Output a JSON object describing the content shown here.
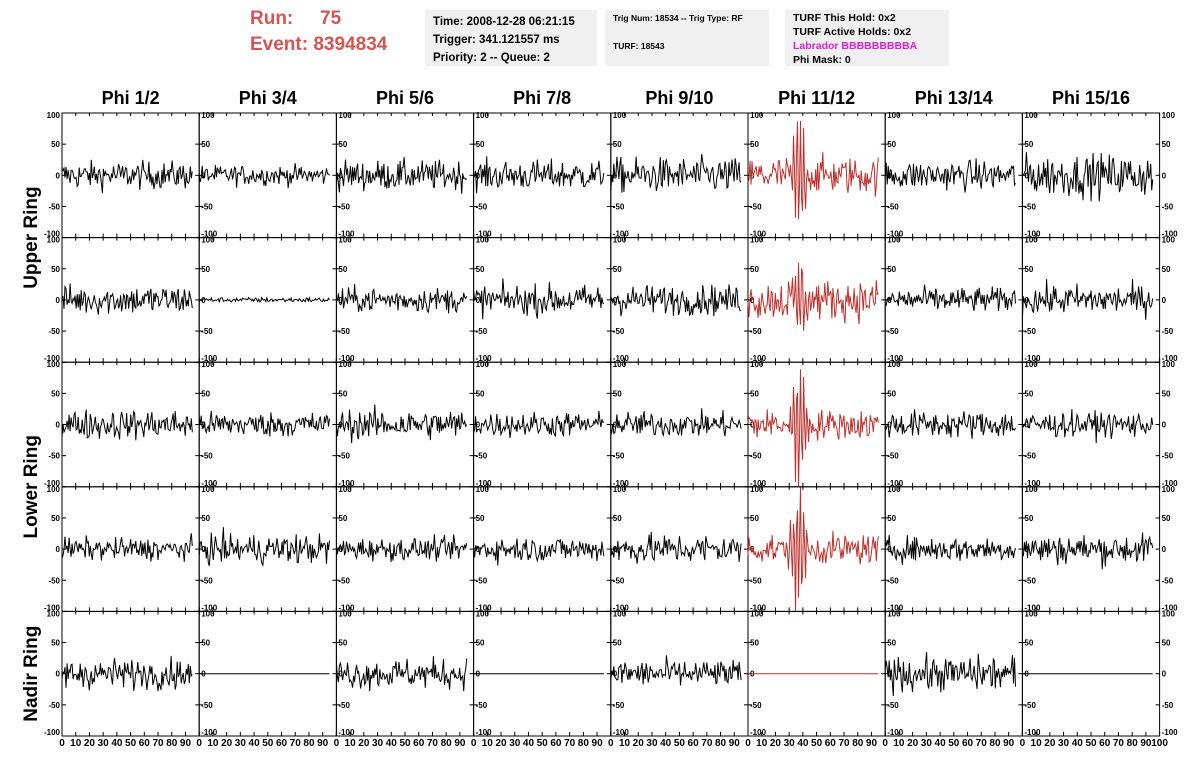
{
  "header": {
    "run_label": "Run:",
    "run_value": "75",
    "event_label": "Event:",
    "event_value": "8394834",
    "time": "Time: 2008-12-28 06:21:15",
    "trigger": "Trigger: 341.121557 ms",
    "priority": "Priority: 2 -- Queue: 2",
    "trig_num": "Trig Num: 18534 -- Trig Type: RF",
    "turf": "TURF: 18543",
    "turf_this_hold": "TURF This Hold: 0x2",
    "turf_active_holds": "TURF Active Holds: 0x2",
    "labrador": "Labrador BBBBBBBBBA",
    "phi_mask": "Phi Mask: 0"
  },
  "colors": {
    "normal": "#000000",
    "highlight": "#c0302c",
    "run": "#d9534f",
    "labrador": "#e020e0"
  },
  "chart_data": {
    "type": "line",
    "columns": [
      "Phi 1/2",
      "Phi 3/4",
      "Phi 5/6",
      "Phi 7/8",
      "Phi 9/10",
      "Phi 11/12",
      "Phi 13/14",
      "Phi 15/16"
    ],
    "ring_labels": [
      {
        "label": "Upper Ring",
        "rows": [
          0,
          1
        ]
      },
      {
        "label": "Lower Ring",
        "rows": [
          2,
          3
        ]
      },
      {
        "label": "Nadir Ring",
        "rows": [
          4
        ]
      }
    ],
    "xlim": [
      0,
      100
    ],
    "ylim": [
      -100,
      100
    ],
    "y_ticks": [
      100,
      50,
      0,
      -50,
      -100
    ],
    "y_tick_labels": [
      "100",
      "50",
      "0",
      "-50",
      "-100"
    ],
    "x_tick_labels": [
      "0",
      "10",
      "20",
      "30",
      "40",
      "50",
      "60",
      "70",
      "80",
      "90",
      "100"
    ],
    "highlight_column": 5,
    "trace_x_range": [
      0,
      95
    ],
    "trace_points": 130,
    "pulse_center": 37,
    "amplitude_rms": [
      [
        11,
        8,
        12,
        12,
        14,
        15,
        12,
        17
      ],
      [
        12,
        2,
        10,
        12,
        12,
        16,
        10,
        12
      ],
      [
        12,
        10,
        12,
        10,
        10,
        12,
        11,
        10
      ],
      [
        9,
        12,
        9,
        10,
        12,
        12,
        10,
        12
      ],
      [
        12,
        0,
        12,
        0,
        11,
        0,
        14,
        0
      ]
    ],
    "pulse_peak": [
      [
        0,
        0,
        0,
        0,
        0,
        -90,
        0,
        0
      ],
      [
        0,
        0,
        0,
        0,
        0,
        60,
        0,
        0
      ],
      [
        0,
        0,
        0,
        0,
        0,
        -98,
        0,
        0
      ],
      [
        0,
        0,
        0,
        0,
        0,
        -95,
        0,
        0
      ],
      [
        0,
        0,
        0,
        0,
        0,
        0,
        0,
        0
      ]
    ],
    "grid": false,
    "legend": "none"
  }
}
